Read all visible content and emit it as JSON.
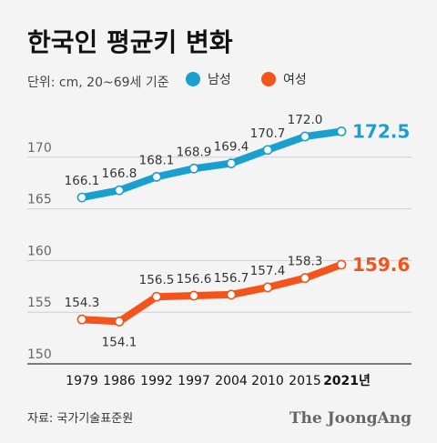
{
  "title": "한국인 평균키 변화",
  "unit_note": "단위: cm, 20~69세 기준",
  "source": "자료: 국가기술표준원",
  "brand": "The JoongAng",
  "colors": {
    "male": "#1aa0cf",
    "female": "#f2541b",
    "grid": "#cfcfcf",
    "axis": "#555555"
  },
  "chart_data": {
    "type": "line",
    "x": [
      "1979",
      "1986",
      "1992",
      "1997",
      "2004",
      "2010",
      "2015",
      "2021년"
    ],
    "y_ticks": [
      150,
      155,
      160,
      165,
      170
    ],
    "ylim": [
      150,
      175
    ],
    "legend_placement": "top",
    "grid": true,
    "series": [
      {
        "name": "남성",
        "values": [
          166.1,
          166.8,
          168.1,
          168.9,
          169.4,
          170.7,
          172.0,
          172.5
        ],
        "labels": [
          "166.1",
          "166.8",
          "168.1",
          "168.9",
          "169.4",
          "170.7",
          "172.0",
          "172.5"
        ],
        "color": "#1aa0cf"
      },
      {
        "name": "여성",
        "values": [
          154.3,
          154.1,
          156.5,
          156.6,
          156.7,
          157.4,
          158.3,
          159.6
        ],
        "labels": [
          "154.3",
          "154.1",
          "156.5",
          "156.6",
          "156.7",
          "157.4",
          "158.3",
          "159.6"
        ],
        "color": "#f2541b"
      }
    ]
  }
}
